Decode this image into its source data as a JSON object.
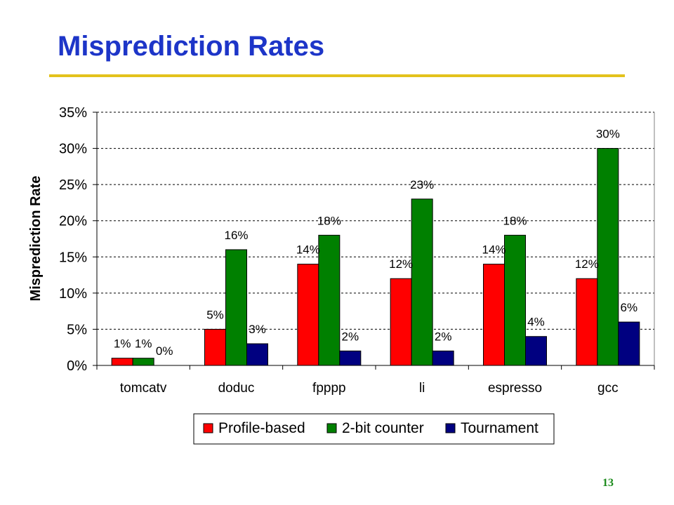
{
  "slide": {
    "title": "Misprediction Rates",
    "page_number": "13"
  },
  "colors": {
    "title": "#1d35c8",
    "rule": "#e3c21c",
    "page_number": "#1a8a1a"
  },
  "chart_data": {
    "type": "bar",
    "title": "",
    "xlabel": "",
    "ylabel": "Misprediction Rate",
    "categories": [
      "tomcatv",
      "doduc",
      "fpppp",
      "li",
      "espresso",
      "gcc"
    ],
    "series": [
      {
        "name": "Profile-based",
        "color": "#ff0000",
        "values": [
          1,
          5,
          14,
          12,
          14,
          12
        ],
        "labels": [
          "1%",
          "5%",
          "14%",
          "12%",
          "14%",
          "12%"
        ]
      },
      {
        "name": "2-bit counter",
        "color": "#008000",
        "values": [
          1,
          16,
          18,
          23,
          18,
          30
        ],
        "labels": [
          "1%",
          "16%",
          "18%",
          "23%",
          "18%",
          "30%"
        ]
      },
      {
        "name": "Tournament",
        "color": "#000080",
        "values": [
          0,
          3,
          2,
          2,
          4,
          6
        ],
        "labels": [
          "0%",
          "3%",
          "2%",
          "2%",
          "4%",
          "6%"
        ]
      }
    ],
    "ylim": [
      0,
      35
    ],
    "yticks": [
      "0%",
      "5%",
      "10%",
      "15%",
      "20%",
      "25%",
      "30%",
      "35%"
    ],
    "ytick_values": [
      0,
      5,
      10,
      15,
      20,
      25,
      30,
      35
    ],
    "grid": "horizontal dashed",
    "legend_position": "bottom"
  }
}
